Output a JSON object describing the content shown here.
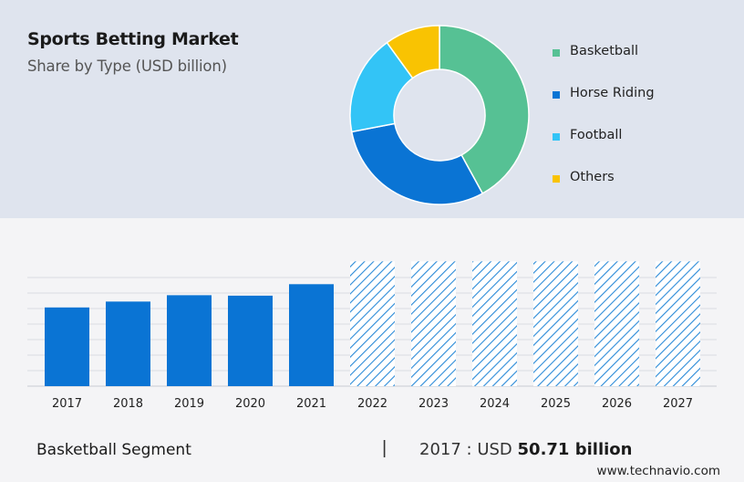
{
  "header": {
    "title": "Sports Betting Market",
    "subtitle": "Share by Type (USD billion)"
  },
  "chart_data": [
    {
      "type": "pie",
      "variant": "donut",
      "categories": [
        "Basketball",
        "Horse Riding",
        "Football",
        "Others"
      ],
      "values": [
        42,
        30,
        18,
        10
      ],
      "colors": [
        "#56c194",
        "#0a74d4",
        "#33c4f6",
        "#f9c302"
      ],
      "legend_position": "right"
    },
    {
      "type": "bar",
      "categories": [
        "2017",
        "2018",
        "2019",
        "2020",
        "2021",
        "2022",
        "2023",
        "2024",
        "2025",
        "2026",
        "2027"
      ],
      "values": [
        50.71,
        54.5,
        58.6,
        58.3,
        65.7,
        80.4,
        80.4,
        80.4,
        80.4,
        80.4,
        80.4
      ],
      "forecast_from": "2022",
      "ylim": [
        0,
        90
      ],
      "grid": true,
      "bar_color": "#0a74d4"
    }
  ],
  "footer": {
    "segment": "Basketball Segment",
    "separator": "|",
    "year_prefix": "2017 : USD",
    "value": "50.71 billion"
  },
  "brand": {
    "site": "www.technavio.com"
  }
}
